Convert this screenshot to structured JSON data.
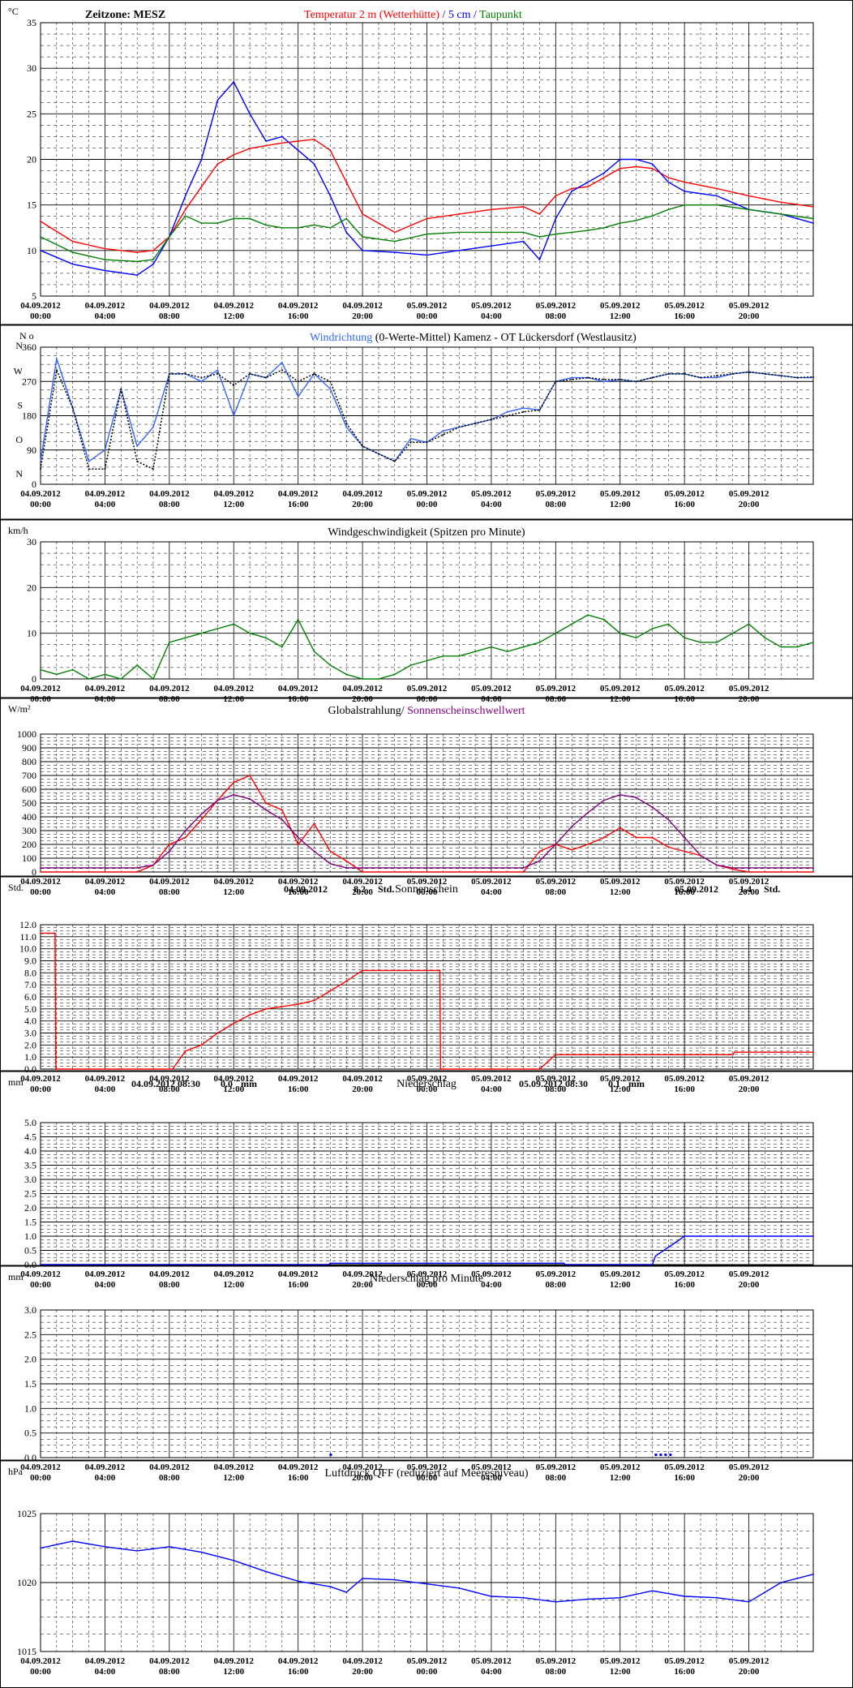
{
  "colors": {
    "black": "#000000",
    "red": "#ff0000",
    "blue": "#0000ff",
    "light_blue": "#3366ff",
    "green": "#008000",
    "purple": "#800080",
    "grid_minor": "#000000",
    "grid_major": "#000000",
    "frame_bg": "#ffffff"
  },
  "x_axis": {
    "tick_labels": [
      {
        "date": "04.09.2012",
        "time": "00:00"
      },
      {
        "date": "04.09.2012",
        "time": "04:00"
      },
      {
        "date": "04.09.2012",
        "time": "08:00"
      },
      {
        "date": "04.09.2012",
        "time": "12:00"
      },
      {
        "date": "04.09.2012",
        "time": "16:00"
      },
      {
        "date": "04.09.2012",
        "time": "20:00"
      },
      {
        "date": "05.09.2012",
        "time": "00:00"
      },
      {
        "date": "05.09.2012",
        "time": "04:00"
      },
      {
        "date": "05.09.2012",
        "time": "08:00"
      },
      {
        "date": "05.09.2012",
        "time": "12:00"
      },
      {
        "date": "05.09.2012",
        "time": "16:00"
      },
      {
        "date": "05.09.2012",
        "time": "20:00"
      }
    ]
  },
  "chart_data": [
    {
      "id": "temperature",
      "type": "line",
      "unit_label": "°C",
      "header_left": "Zeitzone: MESZ",
      "title_parts": [
        {
          "text": "Temperatur 2 m (Wetterhütte)",
          "color": "#ff0000"
        },
        {
          "text": "  /  ",
          "color": "#0000ff"
        },
        {
          "text": "5 cm",
          "color": "#0000ff"
        },
        {
          "text": " / ",
          "color": "#0000ff"
        },
        {
          "text": "Taupunkt",
          "color": "#008000"
        }
      ],
      "ylim": [
        5,
        35
      ],
      "y_ticks": [
        5,
        10,
        15,
        20,
        25,
        30,
        35
      ],
      "x_hours": [
        0,
        2,
        4,
        6,
        7,
        8,
        9,
        10,
        11,
        12,
        13,
        14,
        15,
        16,
        17,
        18,
        19,
        20,
        22,
        24,
        26,
        28,
        30,
        31,
        32,
        33,
        34,
        35,
        36,
        37,
        38,
        39,
        40,
        42,
        44,
        46,
        48
      ],
      "series": [
        {
          "name": "Temperatur 2 m (Wetterhütte)",
          "color": "#ff0000",
          "values": [
            13.2,
            11.0,
            10.2,
            9.8,
            10.0,
            11.5,
            14.5,
            17.0,
            19.5,
            20.5,
            21.2,
            21.5,
            21.8,
            22.0,
            22.2,
            21.0,
            17.5,
            14.0,
            12.0,
            13.5,
            14.0,
            14.5,
            14.8,
            14.0,
            16.0,
            16.8,
            17.0,
            18.0,
            19.0,
            19.2,
            19.0,
            18.0,
            17.5,
            16.8,
            16.0,
            15.3,
            14.8
          ]
        },
        {
          "name": "5 cm",
          "color": "#0000ff",
          "values": [
            10.0,
            8.5,
            7.8,
            7.3,
            8.5,
            11.5,
            16.0,
            20.0,
            26.5,
            28.5,
            25.0,
            22.0,
            22.5,
            21.0,
            19.5,
            16.0,
            12.0,
            10.0,
            9.8,
            9.5,
            10.0,
            10.5,
            11.0,
            9.0,
            13.5,
            16.5,
            17.5,
            18.5,
            20.0,
            20.0,
            19.5,
            17.5,
            16.5,
            16.0,
            14.5,
            14.0,
            13.0
          ]
        },
        {
          "name": "Taupunkt",
          "color": "#008000",
          "values": [
            11.5,
            9.8,
            9.0,
            8.8,
            9.0,
            11.5,
            13.8,
            13.0,
            13.0,
            13.5,
            13.5,
            12.8,
            12.5,
            12.5,
            12.8,
            12.5,
            13.5,
            11.5,
            11.0,
            11.8,
            12.0,
            12.0,
            12.0,
            11.5,
            11.8,
            12.0,
            12.2,
            12.5,
            13.0,
            13.3,
            13.8,
            14.5,
            15.0,
            15.0,
            14.5,
            14.0,
            13.5
          ]
        }
      ]
    },
    {
      "id": "wind_direction",
      "type": "line",
      "title_parts": [
        {
          "text": "Windrichtung",
          "color": "#3366ff"
        },
        {
          "text": " (0-Werte-Mittel)",
          "color": "#000000"
        },
        {
          "text": "                Kamenz - OT Lückersdorf (Westlausitz)",
          "color": "#000000"
        }
      ],
      "ylim": [
        0,
        360
      ],
      "y_ticks": [
        0,
        90,
        180,
        270,
        360
      ],
      "y_letters": [
        "N",
        "O",
        "S",
        "W",
        "N"
      ],
      "compass_top": "N o",
      "x_hours": [
        0,
        1,
        2,
        3,
        4,
        5,
        6,
        7,
        8,
        9,
        10,
        11,
        12,
        13,
        14,
        15,
        16,
        17,
        18,
        19,
        20,
        21,
        22,
        23,
        24,
        25,
        26,
        27,
        28,
        29,
        30,
        31,
        32,
        33,
        34,
        35,
        36,
        37,
        38,
        39,
        40,
        41,
        42,
        43,
        44,
        45,
        46,
        47,
        48
      ],
      "series": [
        {
          "name": "Windrichtung",
          "color": "#3366ff",
          "values": [
            60,
            330,
            200,
            60,
            90,
            250,
            100,
            150,
            290,
            290,
            270,
            300,
            180,
            290,
            280,
            320,
            230,
            290,
            250,
            150,
            100,
            80,
            60,
            120,
            110,
            140,
            150,
            160,
            170,
            190,
            200,
            195,
            270,
            280,
            280,
            270,
            275,
            270,
            280,
            290,
            290,
            280,
            280,
            290,
            295,
            290,
            285,
            280,
            280
          ]
        },
        {
          "name": "Mittel",
          "color": "#000000",
          "values": [
            40,
            300,
            200,
            40,
            40,
            250,
            60,
            40,
            290,
            290,
            280,
            290,
            260,
            290,
            280,
            300,
            270,
            290,
            270,
            160,
            100,
            80,
            60,
            110,
            110,
            130,
            150,
            160,
            170,
            180,
            190,
            195,
            270,
            275,
            280,
            275,
            275,
            270,
            280,
            290,
            290,
            280,
            285,
            290,
            295,
            290,
            285,
            280,
            282
          ]
        }
      ]
    },
    {
      "id": "wind_speed",
      "type": "line",
      "unit_label": "km/h",
      "title_parts": [
        {
          "text": "Windgeschwindigkeit (Spitzen pro Minute)",
          "color": "#000000"
        }
      ],
      "ylim": [
        0,
        30
      ],
      "y_ticks": [
        0,
        10,
        20,
        30
      ],
      "x_hours": [
        0,
        1,
        2,
        3,
        4,
        5,
        6,
        7,
        8,
        9,
        10,
        11,
        12,
        13,
        14,
        15,
        16,
        17,
        18,
        19,
        20,
        21,
        22,
        23,
        24,
        25,
        26,
        27,
        28,
        29,
        30,
        31,
        32,
        33,
        34,
        35,
        36,
        37,
        38,
        39,
        40,
        41,
        42,
        43,
        44,
        45,
        46,
        47,
        48
      ],
      "series": [
        {
          "name": "Windgeschwindigkeit",
          "color": "#008000",
          "values": [
            2,
            1,
            2,
            0,
            1,
            0,
            3,
            0,
            8,
            9,
            10,
            11,
            12,
            10,
            9,
            7,
            13,
            6,
            3,
            1,
            0,
            0,
            1,
            3,
            4,
            5,
            5,
            6,
            7,
            6,
            7,
            8,
            10,
            12,
            14,
            13,
            10,
            9,
            11,
            12,
            9,
            8,
            8,
            10,
            12,
            9,
            7,
            7,
            8
          ]
        }
      ]
    },
    {
      "id": "radiation",
      "type": "line",
      "unit_label": "W/m²",
      "title_parts": [
        {
          "text": "Globalstrahlung",
          "color": "#000000"
        },
        {
          "text": "/ ",
          "color": "#000000"
        },
        {
          "text": "Sonnenscheinschwellwert",
          "color": "#800080"
        }
      ],
      "ylim": [
        0,
        1000
      ],
      "y_ticks": [
        0,
        100,
        200,
        300,
        400,
        500,
        600,
        700,
        800,
        900,
        1000
      ],
      "x_hours": [
        0,
        6,
        7,
        8,
        9,
        10,
        11,
        12,
        13,
        14,
        15,
        16,
        17,
        18,
        19,
        20,
        30,
        31,
        32,
        33,
        34,
        35,
        36,
        37,
        38,
        39,
        40,
        41,
        42,
        43,
        44,
        48
      ],
      "series": [
        {
          "name": "Globalstrahlung",
          "color": "#ff0000",
          "values": [
            0,
            0,
            50,
            200,
            250,
            380,
            520,
            650,
            700,
            500,
            450,
            200,
            350,
            150,
            80,
            0,
            0,
            150,
            200,
            160,
            200,
            250,
            320,
            250,
            250,
            180,
            150,
            120,
            50,
            20,
            0,
            0
          ]
        },
        {
          "name": "Sonnenscheinschwellwert",
          "color": "#800080",
          "values": [
            30,
            30,
            50,
            150,
            300,
            420,
            520,
            560,
            530,
            450,
            380,
            250,
            150,
            60,
            30,
            30,
            30,
            80,
            200,
            330,
            430,
            520,
            560,
            540,
            470,
            380,
            250,
            120,
            50,
            30,
            30,
            30
          ]
        }
      ]
    },
    {
      "id": "sunshine",
      "type": "line",
      "unit_label": "Std.",
      "title_parts": [
        {
          "text": "Sonnenschein",
          "color": "#000000"
        }
      ],
      "info_left": {
        "date": "04.09.2012",
        "value": "8.2",
        "unit": "Std."
      },
      "info_right": {
        "date": "05.09.2012",
        "value": "1.4",
        "unit": "Std."
      },
      "ylim": [
        0,
        12
      ],
      "y_ticks": [
        0.0,
        1.0,
        2.0,
        3.0,
        4.0,
        5.0,
        6.0,
        7.0,
        8.0,
        9.0,
        10.0,
        11.0,
        12.0
      ],
      "x_hours": [
        0,
        0.9,
        0.95,
        8.2,
        9,
        10,
        11,
        12,
        13,
        14,
        15,
        16,
        17,
        18,
        19,
        20,
        24.8,
        24.85,
        31,
        32,
        36,
        40,
        43,
        43.1,
        48
      ],
      "series": [
        {
          "name": "Sonnenschein",
          "color": "#ff0000",
          "values": [
            11.3,
            11.3,
            0,
            0,
            1.5,
            2.0,
            3.0,
            3.8,
            4.5,
            5.0,
            5.2,
            5.4,
            5.7,
            6.5,
            7.3,
            8.2,
            8.2,
            0,
            0,
            1.2,
            1.2,
            1.2,
            1.2,
            1.4,
            1.4
          ]
        }
      ]
    },
    {
      "id": "precipitation",
      "type": "line",
      "unit_label": "mm",
      "title_parts": [
        {
          "text": "Niederschlag",
          "color": "#000000"
        }
      ],
      "info_left": {
        "date": "04.09.2012 08:30",
        "value": "0.0",
        "unit": "mm"
      },
      "info_right": {
        "date": "05.09.2012 08:30",
        "value": "0.1",
        "unit": "mm"
      },
      "ylim": [
        0,
        5
      ],
      "y_ticks": [
        0.0,
        0.5,
        1.0,
        1.5,
        2.0,
        2.5,
        3.0,
        3.5,
        4.0,
        4.5,
        5.0
      ],
      "x_hours": [
        0,
        17.9,
        18,
        32.5,
        32.6,
        38,
        38.2,
        39.5,
        40,
        48
      ],
      "series": [
        {
          "name": "Niederschlag",
          "color": "#0000ff",
          "values": [
            0,
            0,
            0.05,
            0.05,
            0,
            0,
            0.3,
            0.8,
            1.0,
            1.0
          ]
        }
      ]
    },
    {
      "id": "precip_minute",
      "type": "bar",
      "unit_label": "mm",
      "title_parts": [
        {
          "text": "Niederschlag pro Minute",
          "color": "#000000"
        }
      ],
      "ylim": [
        0,
        3
      ],
      "y_ticks": [
        0.0,
        0.5,
        1.0,
        1.5,
        2.0,
        2.5,
        3.0
      ],
      "x_hours": [
        18,
        38.2,
        38.5,
        38.8,
        39.1
      ],
      "series": [
        {
          "name": "Niederschlag pro Minute",
          "color": "#0000ff",
          "values": [
            0.05,
            0.05,
            0.05,
            0.05,
            0.05
          ]
        }
      ]
    },
    {
      "id": "pressure",
      "type": "line",
      "unit_label": "hPa",
      "title_parts": [
        {
          "text": "Luftdruck QFF (reduziert auf Meeresniveau)",
          "color": "#000000"
        }
      ],
      "ylim": [
        1015,
        1025
      ],
      "y_ticks": [
        1015,
        1020,
        1025
      ],
      "x_hours": [
        0,
        2,
        4,
        6,
        8,
        10,
        12,
        14,
        16,
        18,
        19,
        20,
        22,
        24,
        26,
        28,
        30,
        32,
        34,
        36,
        38,
        40,
        42,
        44,
        46,
        48
      ],
      "series": [
        {
          "name": "Luftdruck QFF",
          "color": "#0000ff",
          "values": [
            1022.5,
            1023.0,
            1022.6,
            1022.3,
            1022.6,
            1022.2,
            1021.6,
            1020.8,
            1020.1,
            1019.7,
            1019.3,
            1020.3,
            1020.2,
            1019.9,
            1019.6,
            1019.0,
            1018.9,
            1018.6,
            1018.8,
            1018.9,
            1019.4,
            1019.0,
            1018.9,
            1018.6,
            1020.0,
            1020.6
          ]
        }
      ]
    }
  ]
}
